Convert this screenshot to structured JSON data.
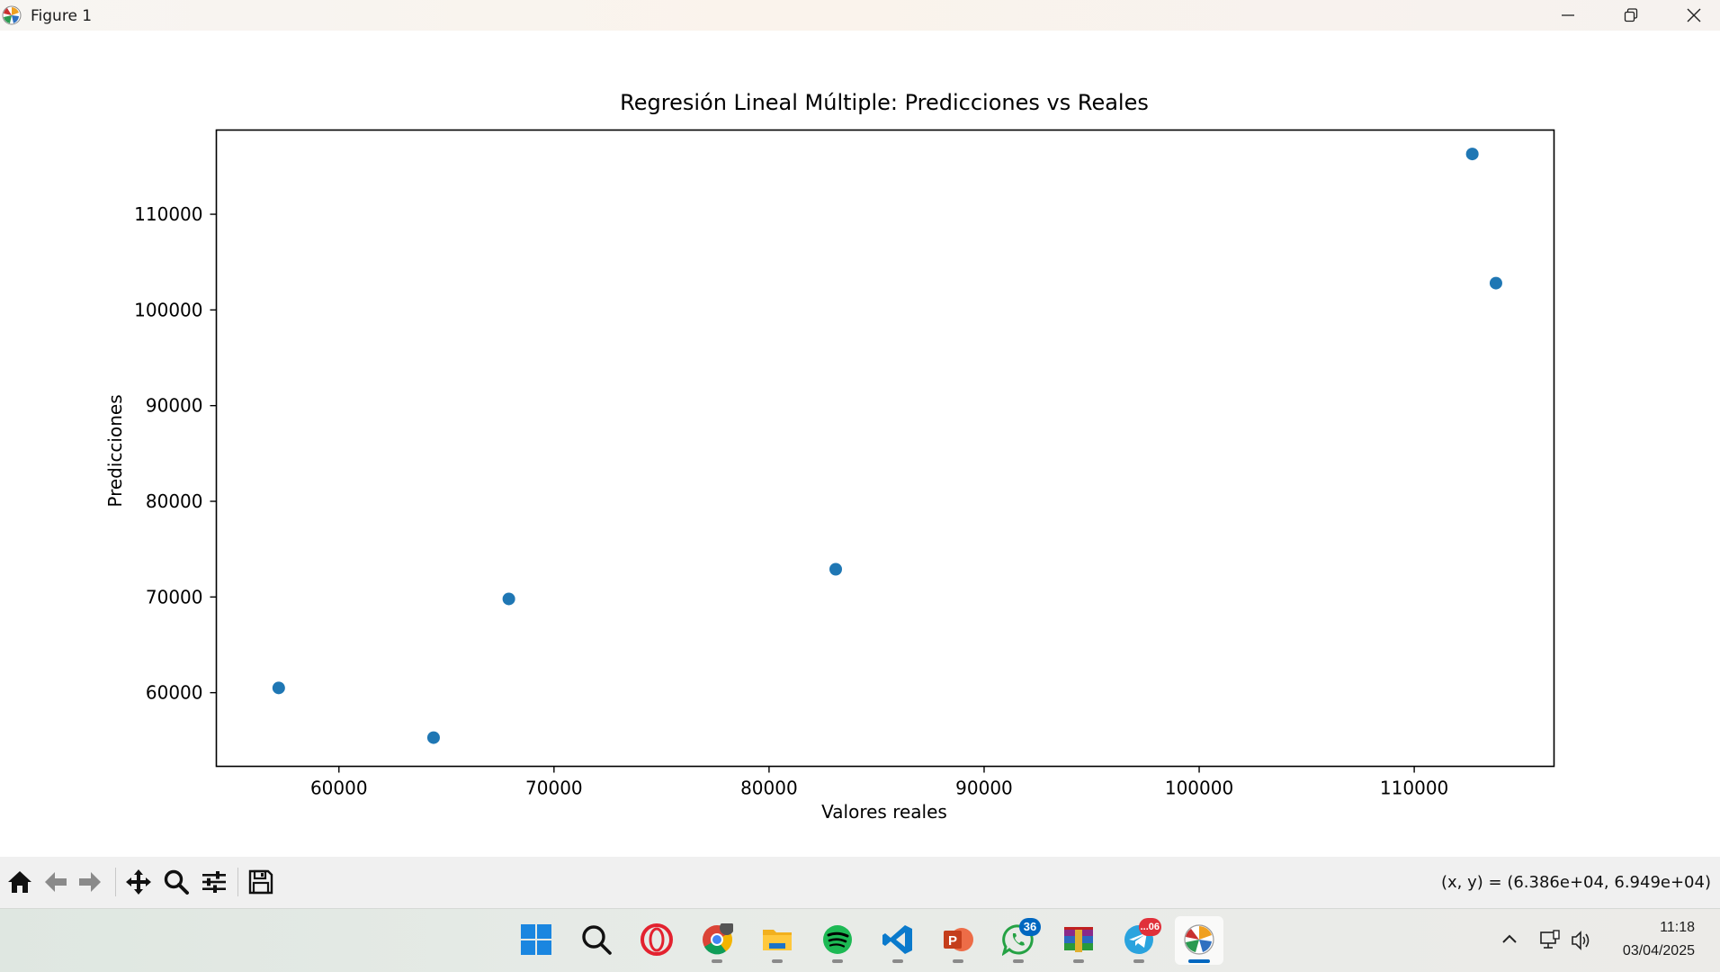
{
  "window": {
    "title": "Figure 1"
  },
  "chart_data": {
    "type": "scatter",
    "title": "Regresión Lineal Múltiple: Predicciones vs Reales",
    "xlabel": "Valores reales",
    "ylabel": "Predicciones",
    "xlim": [
      54300,
      116500
    ],
    "ylim": [
      52300,
      118800
    ],
    "xticks": [
      60000,
      70000,
      80000,
      90000,
      100000,
      110000
    ],
    "yticks": [
      60000,
      70000,
      80000,
      90000,
      100000,
      110000
    ],
    "grid": false,
    "marker_color": "#1f77b4",
    "points": [
      {
        "x": 57200,
        "y": 60500
      },
      {
        "x": 64400,
        "y": 55300
      },
      {
        "x": 67900,
        "y": 69800
      },
      {
        "x": 83100,
        "y": 72900
      },
      {
        "x": 112700,
        "y": 116300
      },
      {
        "x": 113800,
        "y": 102800
      }
    ]
  },
  "toolbar": {
    "coords_readout": "(x, y) = (6.386e+04, 6.949e+04)"
  },
  "taskbar": {
    "apps": [
      {
        "name": "start",
        "badge": ""
      },
      {
        "name": "search",
        "badge": ""
      },
      {
        "name": "opera",
        "badge": ""
      },
      {
        "name": "chrome",
        "badge": ""
      },
      {
        "name": "file-explorer",
        "badge": ""
      },
      {
        "name": "spotify",
        "badge": ""
      },
      {
        "name": "vscode",
        "badge": ""
      },
      {
        "name": "powerpoint",
        "badge": ""
      },
      {
        "name": "whatsapp",
        "badge": "36"
      },
      {
        "name": "winrar",
        "badge": ""
      },
      {
        "name": "telegram",
        "badge": "...06"
      },
      {
        "name": "matplotlib-figure",
        "badge": ""
      }
    ],
    "clock": {
      "time": "11:18",
      "date": "03/04/2025"
    }
  }
}
